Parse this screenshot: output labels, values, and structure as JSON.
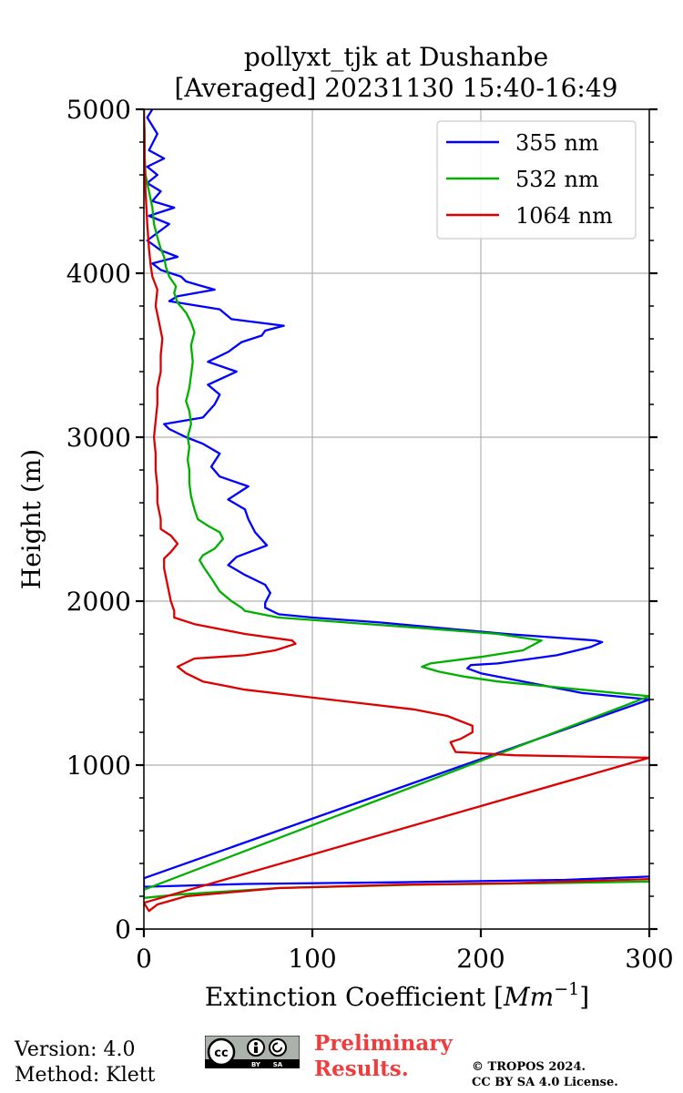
{
  "chart_data": {
    "type": "line",
    "title": [
      "pollyxt_tjk at Dushanbe",
      "[Averaged] 20231130 15:40-16:49"
    ],
    "xlabel": "Extinction Coefficient [",
    "xlabel_unit": "Mm",
    "xlabel_exp": "−1",
    "xlabel_end": "]",
    "ylabel": "Height (m)",
    "xlim": [
      0,
      300
    ],
    "ylim": [
      0,
      5000
    ],
    "xticks": [
      0,
      100,
      200,
      300
    ],
    "yticks": [
      0,
      1000,
      2000,
      3000,
      4000,
      5000
    ],
    "grid": true,
    "legend_position": "top-right",
    "series": [
      {
        "name": "355 nm",
        "color": "#0000ff",
        "points": [
          [
            300,
            320
          ],
          [
            250,
            300
          ],
          [
            150,
            285
          ],
          [
            60,
            275
          ],
          [
            0,
            258
          ],
          [
            0,
            310
          ],
          [
            300,
            1400
          ],
          [
            260,
            1440
          ],
          [
            230,
            1500
          ],
          [
            200,
            1560
          ],
          [
            192,
            1590
          ],
          [
            194,
            1610
          ],
          [
            210,
            1620
          ],
          [
            245,
            1670
          ],
          [
            265,
            1720
          ],
          [
            272,
            1750
          ],
          [
            268,
            1760
          ],
          [
            215,
            1800
          ],
          [
            140,
            1870
          ],
          [
            100,
            1900
          ],
          [
            80,
            1920
          ],
          [
            72,
            1960
          ],
          [
            72,
            1990
          ],
          [
            75,
            2050
          ],
          [
            72,
            2100
          ],
          [
            60,
            2160
          ],
          [
            50,
            2220
          ],
          [
            55,
            2270
          ],
          [
            73,
            2340
          ],
          [
            66,
            2420
          ],
          [
            62,
            2500
          ],
          [
            60,
            2560
          ],
          [
            50,
            2620
          ],
          [
            62,
            2700
          ],
          [
            45,
            2760
          ],
          [
            40,
            2820
          ],
          [
            45,
            2900
          ],
          [
            35,
            2960
          ],
          [
            25,
            3000
          ],
          [
            15,
            3050
          ],
          [
            12,
            3080
          ],
          [
            35,
            3120
          ],
          [
            42,
            3200
          ],
          [
            45,
            3260
          ],
          [
            38,
            3320
          ],
          [
            55,
            3400
          ],
          [
            38,
            3460
          ],
          [
            50,
            3520
          ],
          [
            58,
            3580
          ],
          [
            70,
            3620
          ],
          [
            72,
            3650
          ],
          [
            83,
            3680
          ],
          [
            52,
            3720
          ],
          [
            45,
            3780
          ],
          [
            15,
            3830
          ],
          [
            20,
            3860
          ],
          [
            42,
            3900
          ],
          [
            35,
            3920
          ],
          [
            25,
            3950
          ],
          [
            22,
            3980
          ],
          [
            10,
            4020
          ],
          [
            5,
            4060
          ],
          [
            20,
            4100
          ],
          [
            10,
            4140
          ],
          [
            2,
            4200
          ],
          [
            15,
            4300
          ],
          [
            3,
            4350
          ],
          [
            18,
            4400
          ],
          [
            5,
            4440
          ],
          [
            10,
            4500
          ],
          [
            2,
            4550
          ],
          [
            8,
            4600
          ],
          [
            2,
            4650
          ],
          [
            12,
            4700
          ],
          [
            3,
            4750
          ],
          [
            8,
            4850
          ],
          [
            2,
            4950
          ],
          [
            5,
            5000
          ]
        ]
      },
      {
        "name": "532 nm",
        "color": "#00b000",
        "points": [
          [
            300,
            290
          ],
          [
            240,
            280
          ],
          [
            160,
            270
          ],
          [
            80,
            250
          ],
          [
            20,
            210
          ],
          [
            0,
            190
          ],
          [
            0,
            240
          ],
          [
            300,
            1420
          ],
          [
            250,
            1470
          ],
          [
            210,
            1510
          ],
          [
            190,
            1540
          ],
          [
            175,
            1570
          ],
          [
            165,
            1600
          ],
          [
            170,
            1620
          ],
          [
            200,
            1660
          ],
          [
            225,
            1700
          ],
          [
            236,
            1760
          ],
          [
            210,
            1800
          ],
          [
            160,
            1840
          ],
          [
            120,
            1870
          ],
          [
            80,
            1900
          ],
          [
            60,
            1940
          ],
          [
            58,
            1960
          ],
          [
            52,
            2000
          ],
          [
            45,
            2060
          ],
          [
            40,
            2140
          ],
          [
            36,
            2200
          ],
          [
            33,
            2250
          ],
          [
            35,
            2280
          ],
          [
            42,
            2320
          ],
          [
            47,
            2380
          ],
          [
            45,
            2420
          ],
          [
            38,
            2460
          ],
          [
            32,
            2500
          ],
          [
            30,
            2560
          ],
          [
            28,
            2640
          ],
          [
            27,
            2720
          ],
          [
            27,
            2800
          ],
          [
            26,
            2860
          ],
          [
            27,
            2940
          ],
          [
            26,
            3000
          ],
          [
            28,
            3080
          ],
          [
            27,
            3160
          ],
          [
            25,
            3220
          ],
          [
            27,
            3300
          ],
          [
            28,
            3380
          ],
          [
            29,
            3460
          ],
          [
            28,
            3560
          ],
          [
            30,
            3640
          ],
          [
            28,
            3700
          ],
          [
            25,
            3760
          ],
          [
            20,
            3820
          ],
          [
            18,
            3880
          ],
          [
            19,
            3920
          ],
          [
            15,
            3980
          ],
          [
            13,
            4040
          ],
          [
            12,
            4100
          ],
          [
            10,
            4150
          ],
          [
            8,
            4220
          ],
          [
            6,
            4300
          ],
          [
            5,
            4400
          ],
          [
            3,
            4500
          ],
          [
            1,
            4600
          ],
          [
            0.5,
            4700
          ],
          [
            0.5,
            4850
          ],
          [
            0,
            5000
          ]
        ]
      },
      {
        "name": "1064 nm",
        "color": "#dd0000",
        "points": [
          [
            300,
            305
          ],
          [
            220,
            280
          ],
          [
            150,
            270
          ],
          [
            80,
            250
          ],
          [
            25,
            200
          ],
          [
            8,
            150
          ],
          [
            3,
            110
          ],
          [
            0,
            160
          ],
          [
            300,
            1045
          ],
          [
            220,
            1060
          ],
          [
            185,
            1080
          ],
          [
            182,
            1140
          ],
          [
            188,
            1160
          ],
          [
            195,
            1200
          ],
          [
            195,
            1240
          ],
          [
            180,
            1300
          ],
          [
            160,
            1340
          ],
          [
            110,
            1400
          ],
          [
            60,
            1460
          ],
          [
            35,
            1510
          ],
          [
            25,
            1560
          ],
          [
            20,
            1600
          ],
          [
            24,
            1620
          ],
          [
            30,
            1650
          ],
          [
            45,
            1660
          ],
          [
            60,
            1670
          ],
          [
            78,
            1700
          ],
          [
            90,
            1740
          ],
          [
            88,
            1760
          ],
          [
            60,
            1800
          ],
          [
            30,
            1860
          ],
          [
            18,
            1900
          ],
          [
            18,
            1940
          ],
          [
            16,
            2000
          ],
          [
            14,
            2100
          ],
          [
            12,
            2200
          ],
          [
            12,
            2260
          ],
          [
            16,
            2300
          ],
          [
            20,
            2350
          ],
          [
            16,
            2400
          ],
          [
            10,
            2440
          ],
          [
            10,
            2500
          ],
          [
            8,
            2600
          ],
          [
            8,
            2700
          ],
          [
            7,
            2800
          ],
          [
            7,
            2900
          ],
          [
            6,
            3000
          ],
          [
            7,
            3100
          ],
          [
            8,
            3200
          ],
          [
            8,
            3300
          ],
          [
            10,
            3400
          ],
          [
            10,
            3500
          ],
          [
            11,
            3600
          ],
          [
            9,
            3700
          ],
          [
            7,
            3800
          ],
          [
            8,
            3900
          ],
          [
            5,
            3980
          ],
          [
            4,
            4050
          ],
          [
            3,
            4150
          ],
          [
            2,
            4300
          ],
          [
            1,
            4500
          ],
          [
            0.5,
            4700
          ],
          [
            0,
            5000
          ]
        ]
      }
    ]
  },
  "footer": {
    "version": "Version: 4.0",
    "method": "Method: Klett",
    "prelim_line1": "Preliminary",
    "prelim_line2": "Results.",
    "copyright_line1": "© TROPOS 2024.",
    "copyright_line2": "CC BY SA 4.0 License.",
    "cc_labels": [
      "cc",
      "BY",
      "SA"
    ]
  }
}
